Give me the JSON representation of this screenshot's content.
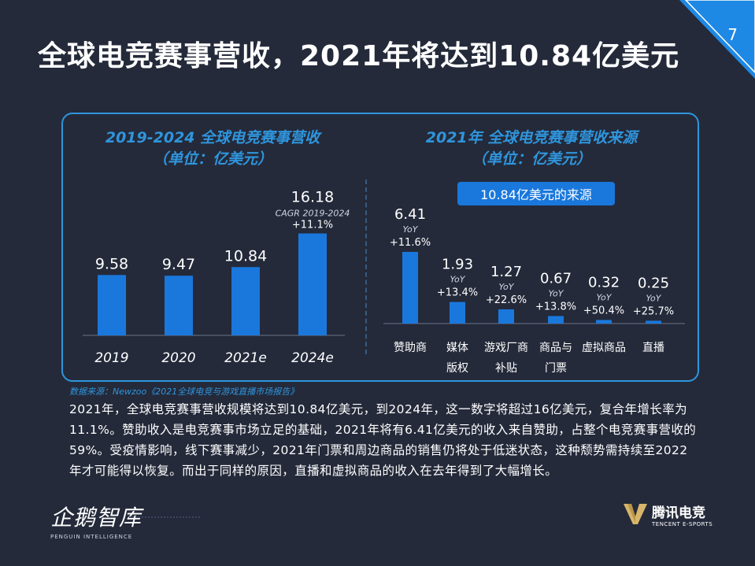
{
  "page": {
    "title": "全球电竞赛事营收，2021年将达到10.84亿美元",
    "number": "7",
    "accent_color": "#2f95dd",
    "bar_color": "#1a78dc",
    "background_color": "#242a3a"
  },
  "left_chart": {
    "subtitle_line1": "2019-2024 全球电竞赛事营收",
    "subtitle_line2": "（单位：亿美元）",
    "cagr_label": "CAGR 2019-2024",
    "cagr_value": "+11.1%"
  },
  "right_chart": {
    "subtitle_line1": "2021年 全球电竞赛事营收来源",
    "subtitle_line2": "（单位：亿美元）",
    "badge": "10.84亿美元的来源",
    "yoy_label": "YoY"
  },
  "chart_data": [
    {
      "type": "bar",
      "title": "2019-2024 全球电竞赛事营收",
      "subtitle": "（单位：亿美元）",
      "categories": [
        "2019",
        "2020",
        "2021e",
        "2024e"
      ],
      "values": [
        9.58,
        9.47,
        10.84,
        16.18
      ],
      "value_labels": [
        "9.58",
        "9.47",
        "10.84",
        "16.18"
      ],
      "annotation": "CAGR 2019-2024 +11.1%",
      "xlabel": "",
      "ylabel": "",
      "grid": false
    },
    {
      "type": "bar",
      "title": "2021年 全球电竞赛事营收来源",
      "subtitle": "（单位：亿美元）",
      "categories": [
        [
          "赞助商"
        ],
        [
          "媒体",
          "版权"
        ],
        [
          "游戏厂商",
          "补贴"
        ],
        [
          "商品与",
          "门票"
        ],
        [
          "虚拟商品"
        ],
        [
          "直播"
        ]
      ],
      "values": [
        6.41,
        1.93,
        1.27,
        0.67,
        0.32,
        0.25
      ],
      "value_labels": [
        "6.41",
        "1.93",
        "1.27",
        "0.67",
        "0.32",
        "0.25"
      ],
      "yoy": [
        "+11.6%",
        "+13.4%",
        "+22.6%",
        "+13.8%",
        "+50.4%",
        "+25.7%"
      ],
      "xlabel": "",
      "ylabel": "",
      "grid": false
    }
  ],
  "footer": {
    "source": "数据来源：Newzoo《2021全球电竞与游戏直播市场报告》",
    "paragraph": "2021年，全球电竞赛事营收规模将达到10.84亿美元，到2024年，这一数字将超过16亿美元，复合年增长率为11.1%。赞助收入是电竞赛事市场立足的基础，2021年将有6.41亿美元的收入来自赞助，占整个电竞赛事营收的59%。受疫情影响，线下赛事减少，2021年门票和周边商品的销售仍将处于低迷状态，这种颓势需持续至2022年才可能得以恢复。而出于同样的原因，直播和虚拟商品的收入在去年得到了大幅增长。",
    "logo_left_cn": "企鹅智库",
    "logo_left_en": "PENGUIN INTELLIGENCE",
    "logo_right_cn": "腾讯电竞",
    "logo_right_en": "TENCENT E-SPORTS"
  }
}
